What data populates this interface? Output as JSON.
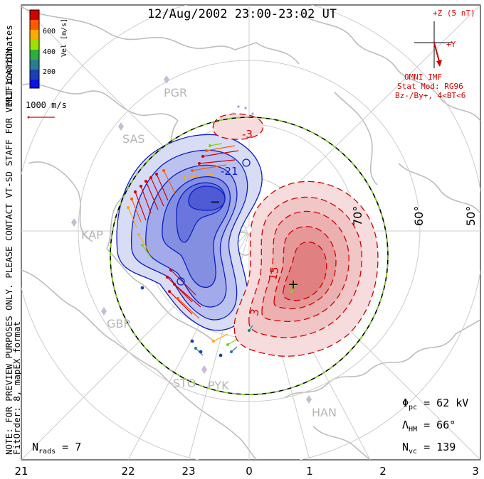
{
  "title": "12/Aug/2002 23:00-23:02 UT",
  "side_note": "NOTE: FOR PREVIEW PURPOSES ONLY. PLEASE CONTACT VT-SD STAFF FOR VERIFICATION.",
  "side_note2": "FitOrder: 8, mapEX format",
  "coords_label": "MLT coordinates",
  "colorbar": {
    "label": "Vel [m/s]",
    "ticks": [
      "600",
      "400",
      "200"
    ],
    "colors": [
      "#d40000",
      "#ff5a00",
      "#ffaa00",
      "#9ee000",
      "#2fae3c",
      "#2a7d92",
      "#1c3fb3",
      "#0a14e6"
    ]
  },
  "velocity_scale": "1000 m/s",
  "imf": {
    "bz_label": "+Z (5 nT)",
    "by_label": "+Y",
    "source": "OMNI IMF",
    "model": "Stat Mod: RG96",
    "condition": "Bz-/By+, 4<BT<6",
    "color": "#d40000"
  },
  "stations": [
    "PGR",
    "SAS",
    "KAP",
    "GBR",
    "STO",
    "PYK",
    "HAN"
  ],
  "latitude_labels": [
    "70°",
    "60°",
    "50°"
  ],
  "mlt_labels": [
    "21",
    "22",
    "23",
    "0",
    "1",
    "2",
    "3"
  ],
  "contour_labels": [
    "-3",
    "-21",
    "15",
    "3"
  ],
  "potential_min_marker": "−",
  "potential_max_marker": "+",
  "stats": {
    "phi_symbol": "Φ",
    "phi_sub": "pc",
    "phi_value": " = 62 kV",
    "lambda_symbol": "Λ",
    "lambda_sub": "HM",
    "lambda_value": " = 66°",
    "nvc_symbol": "N",
    "nvc_sub": "vc",
    "nvc_value": " = 139",
    "nrads_symbol": "N",
    "nrads_sub": "rads",
    "nrads_value": " = 7"
  }
}
